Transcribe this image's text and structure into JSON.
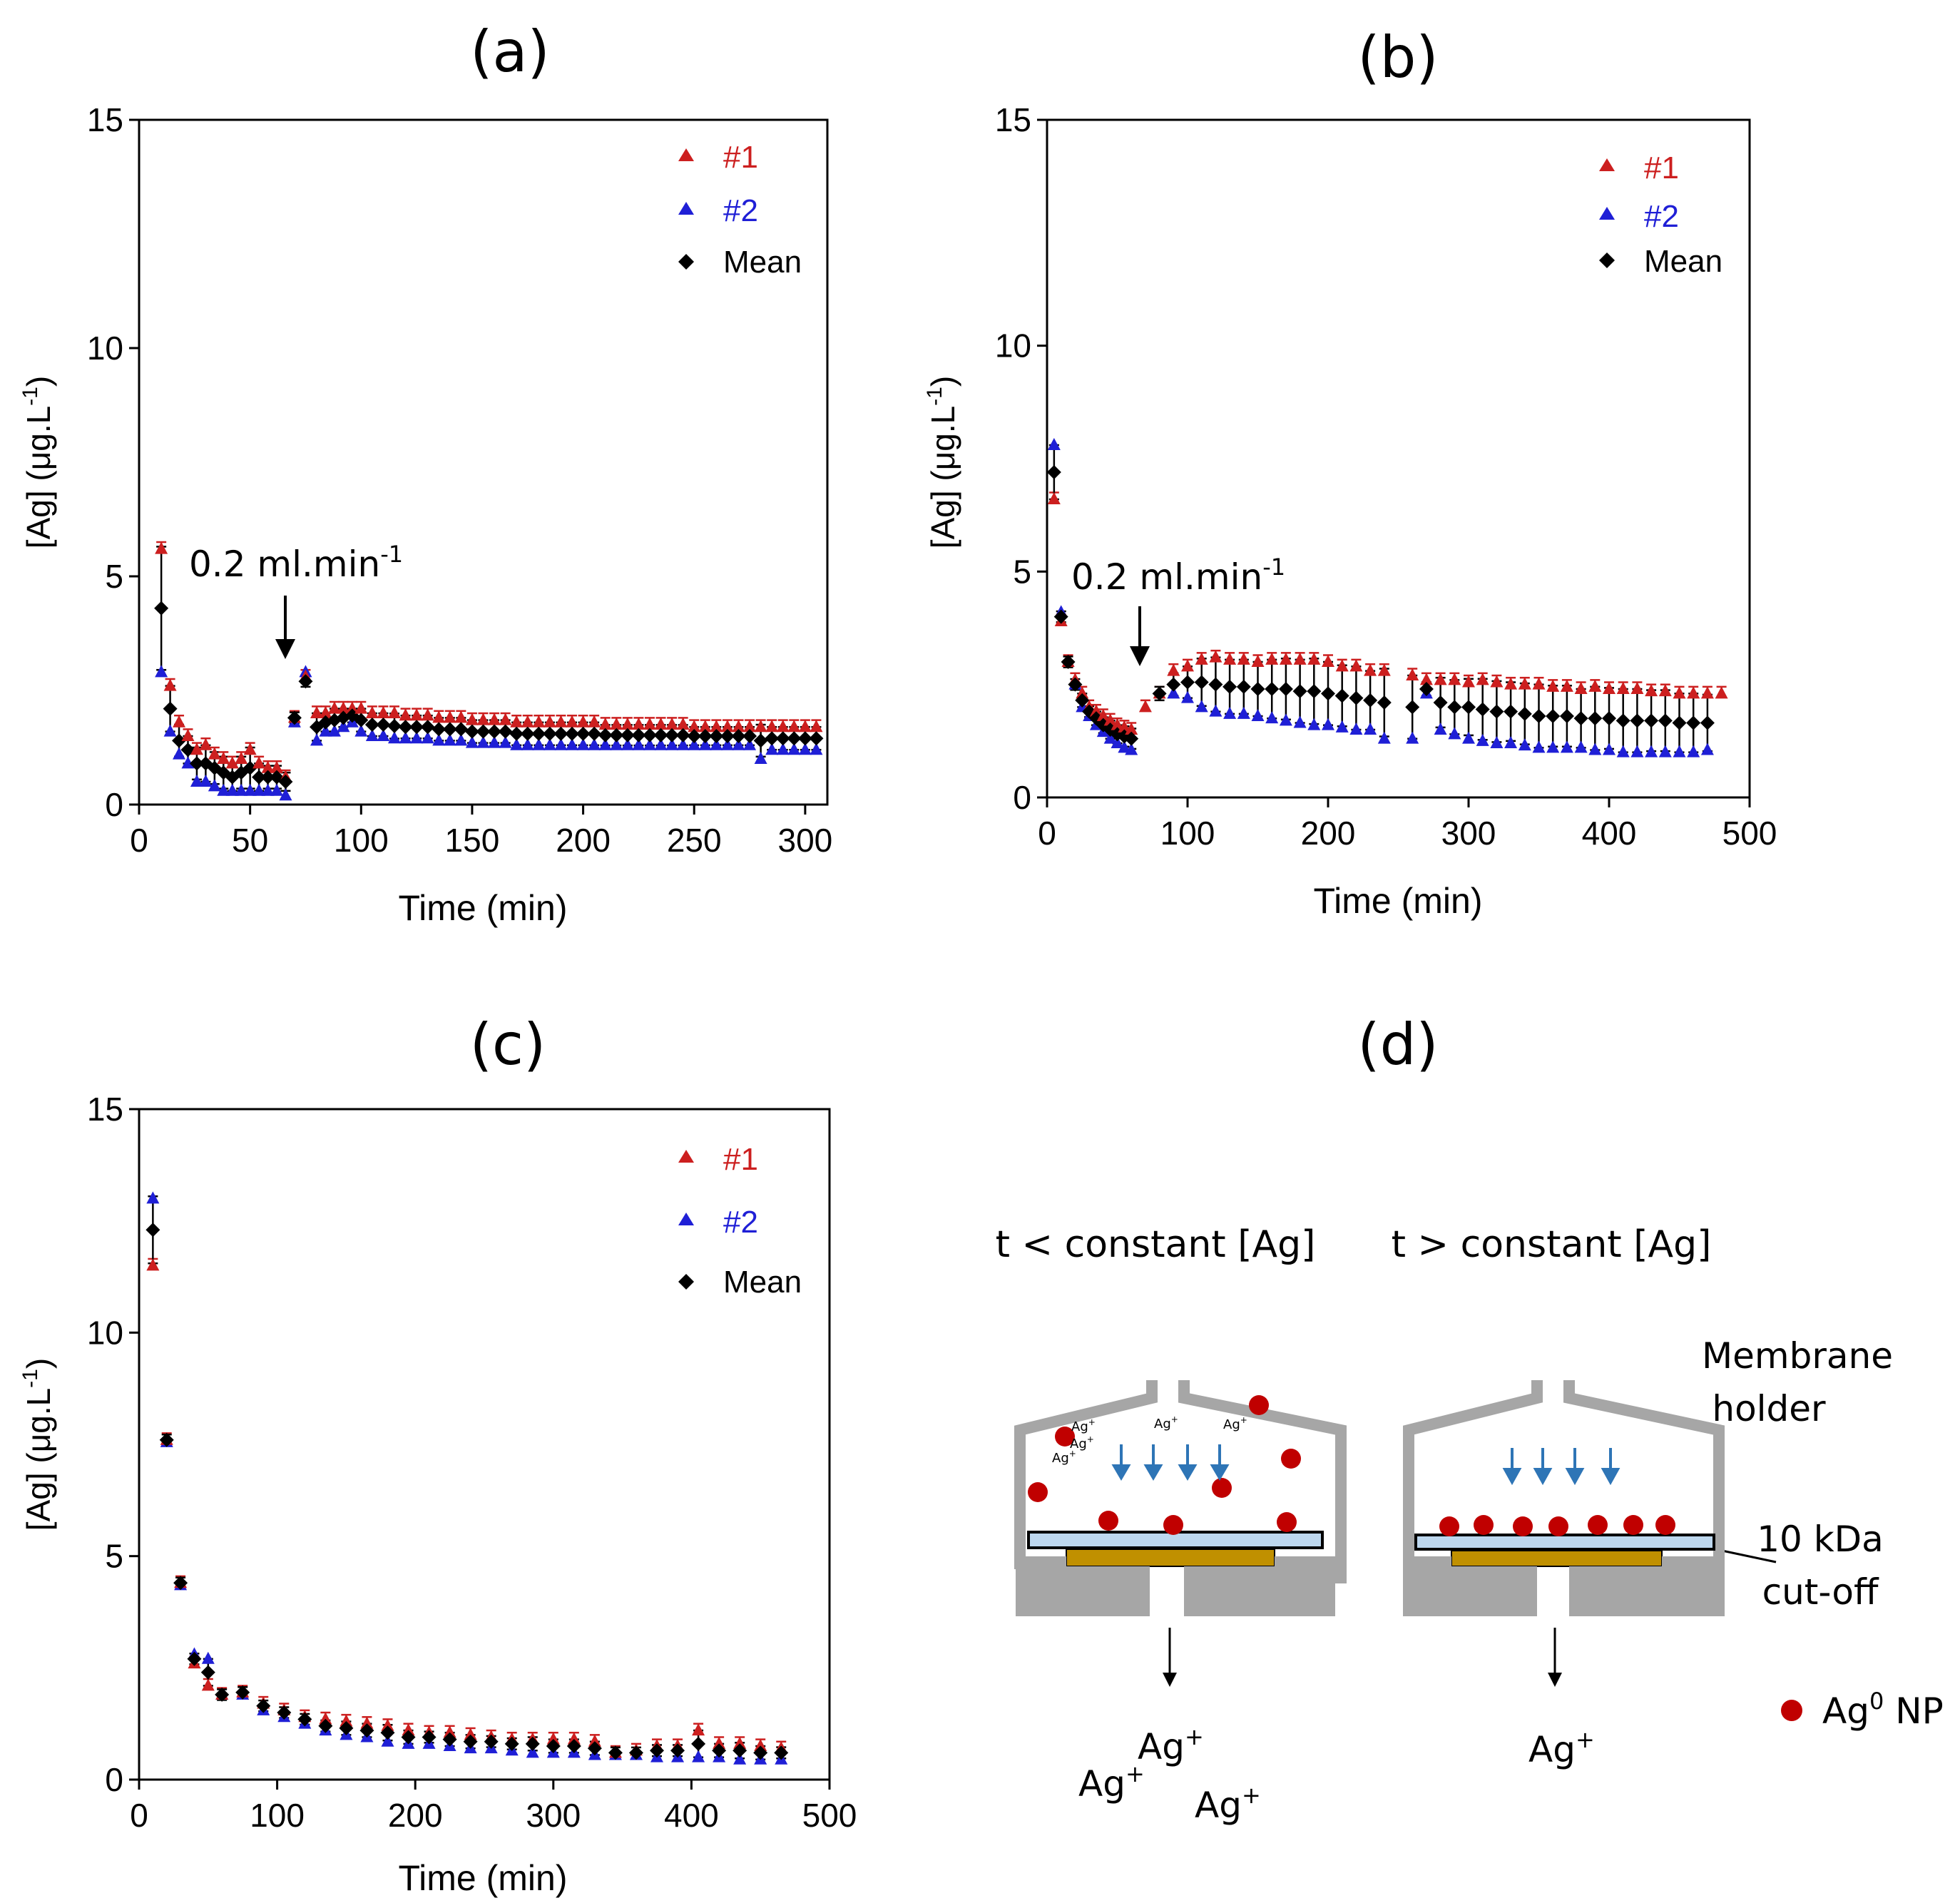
{
  "chart_data": [
    {
      "type": "scatter",
      "panel_label": "(a)",
      "xlabel": "Time (min)",
      "ylabel_main": "[Ag] (μg.L",
      "ylabel_sup": "-1",
      "ylabel_close": ")",
      "xlim": [
        0,
        310
      ],
      "ylim": [
        0,
        15
      ],
      "xticks": [
        0,
        50,
        100,
        150,
        200,
        250,
        300
      ],
      "yticks": [
        0,
        5,
        10,
        15
      ],
      "legend": [
        "#1",
        "#2",
        "Mean"
      ],
      "annotation": {
        "text": "0.2 ml.min",
        "sup": "-1",
        "x": 67,
        "y": 2.4
      },
      "x": [
        10,
        14,
        18,
        22,
        26,
        30,
        34,
        38,
        42,
        46,
        50,
        54,
        58,
        62,
        66,
        70,
        75,
        80,
        84,
        88,
        92,
        96,
        100,
        105,
        110,
        115,
        120,
        125,
        130,
        135,
        140,
        145,
        150,
        155,
        160,
        165,
        170,
        175,
        180,
        185,
        190,
        195,
        200,
        205,
        210,
        215,
        220,
        225,
        230,
        235,
        240,
        245,
        250,
        255,
        260,
        265,
        270,
        275,
        280,
        285,
        290,
        295,
        300,
        305
      ],
      "series": [
        {
          "name": "#1",
          "values": [
            5.6,
            2.6,
            1.8,
            1.5,
            1.2,
            1.3,
            1.1,
            1.0,
            0.9,
            1.0,
            1.2,
            0.9,
            0.8,
            0.8,
            0.6,
            1.9,
            2.8,
            2.0,
            2.0,
            2.1,
            2.1,
            2.1,
            2.1,
            2.0,
            2.0,
            2.0,
            1.95,
            1.95,
            1.95,
            1.9,
            1.9,
            1.9,
            1.85,
            1.85,
            1.85,
            1.85,
            1.8,
            1.8,
            1.8,
            1.8,
            1.8,
            1.8,
            1.8,
            1.8,
            1.75,
            1.75,
            1.75,
            1.75,
            1.75,
            1.75,
            1.75,
            1.75,
            1.7,
            1.7,
            1.7,
            1.7,
            1.7,
            1.7,
            1.7,
            1.7,
            1.7,
            1.7,
            1.7,
            1.7
          ]
        },
        {
          "name": "#2",
          "values": [
            2.9,
            1.6,
            1.1,
            0.9,
            0.5,
            0.5,
            0.4,
            0.3,
            0.3,
            0.3,
            0.3,
            0.3,
            0.3,
            0.3,
            0.2,
            1.8,
            2.9,
            1.4,
            1.6,
            1.6,
            1.7,
            1.8,
            1.6,
            1.5,
            1.5,
            1.45,
            1.45,
            1.45,
            1.45,
            1.4,
            1.4,
            1.4,
            1.35,
            1.35,
            1.35,
            1.35,
            1.3,
            1.3,
            1.3,
            1.3,
            1.3,
            1.3,
            1.3,
            1.3,
            1.3,
            1.3,
            1.3,
            1.3,
            1.3,
            1.3,
            1.3,
            1.3,
            1.3,
            1.3,
            1.3,
            1.3,
            1.3,
            1.3,
            1.0,
            1.2,
            1.2,
            1.2,
            1.2,
            1.2
          ]
        },
        {
          "name": "Mean",
          "values": [
            4.3,
            2.1,
            1.4,
            1.2,
            0.9,
            0.9,
            0.8,
            0.7,
            0.6,
            0.7,
            0.8,
            0.6,
            0.6,
            0.6,
            0.5,
            1.9,
            2.7,
            1.7,
            1.8,
            1.85,
            1.9,
            1.95,
            1.85,
            1.75,
            1.75,
            1.72,
            1.7,
            1.7,
            1.7,
            1.65,
            1.65,
            1.65,
            1.6,
            1.6,
            1.6,
            1.6,
            1.55,
            1.55,
            1.55,
            1.55,
            1.55,
            1.55,
            1.55,
            1.55,
            1.52,
            1.52,
            1.52,
            1.52,
            1.52,
            1.52,
            1.52,
            1.52,
            1.5,
            1.5,
            1.5,
            1.5,
            1.5,
            1.5,
            1.4,
            1.45,
            1.45,
            1.45,
            1.45,
            1.45
          ]
        }
      ]
    },
    {
      "type": "scatter",
      "panel_label": "(b)",
      "xlabel": "Time (min)",
      "ylabel_main": "[Ag] (μg.L",
      "ylabel_sup": "-1",
      "ylabel_close": ")",
      "xlim": [
        0,
        500
      ],
      "ylim": [
        0,
        15
      ],
      "xticks": [
        0,
        100,
        200,
        300,
        400,
        500
      ],
      "yticks": [
        0,
        5,
        10,
        15
      ],
      "legend": [
        "#1",
        "#2",
        "Mean"
      ],
      "annotation": {
        "text": "0.2 ml.min",
        "sup": "-1",
        "x": 67,
        "y": 2.9
      },
      "x": [
        5,
        10,
        15,
        20,
        25,
        30,
        35,
        40,
        45,
        50,
        55,
        60,
        70,
        80,
        90,
        100,
        110,
        120,
        130,
        140,
        150,
        160,
        170,
        180,
        190,
        200,
        210,
        220,
        230,
        240,
        260,
        270,
        280,
        290,
        300,
        310,
        320,
        330,
        340,
        350,
        360,
        370,
        380,
        390,
        400,
        410,
        420,
        430,
        440,
        450,
        460,
        470,
        480
      ],
      "series": [
        {
          "name": "#1",
          "values": [
            6.6,
            3.9,
            3.0,
            2.6,
            2.3,
            2.0,
            1.9,
            1.8,
            1.7,
            1.6,
            1.55,
            1.5,
            2.0,
            2.3,
            2.8,
            2.9,
            3.05,
            3.1,
            3.05,
            3.05,
            3.0,
            3.05,
            3.05,
            3.05,
            3.05,
            3.0,
            2.9,
            2.9,
            2.8,
            2.8,
            2.7,
            2.6,
            2.6,
            2.6,
            2.55,
            2.6,
            2.55,
            2.5,
            2.5,
            2.5,
            2.45,
            2.45,
            2.4,
            2.45,
            2.4,
            2.4,
            2.4,
            2.35,
            2.35,
            2.3,
            2.3,
            2.3,
            2.3
          ]
        },
        {
          "name": "#2",
          "values": [
            7.8,
            4.1,
            3.0,
            2.5,
            2.0,
            1.8,
            1.6,
            1.45,
            1.3,
            1.2,
            1.1,
            1.05,
            null,
            null,
            2.3,
            2.2,
            2.0,
            1.9,
            1.85,
            1.85,
            1.8,
            1.75,
            1.7,
            1.65,
            1.6,
            1.6,
            1.55,
            1.5,
            1.5,
            1.3,
            1.3,
            2.3,
            1.5,
            1.4,
            1.3,
            1.25,
            1.2,
            1.2,
            1.15,
            1.1,
            1.1,
            1.1,
            1.1,
            1.05,
            1.05,
            1.0,
            1.0,
            1.0,
            1.0,
            1.0,
            1.0,
            1.05,
            null
          ]
        },
        {
          "name": "Mean",
          "values": [
            7.2,
            4.0,
            3.0,
            2.5,
            2.15,
            1.9,
            1.75,
            1.6,
            1.5,
            1.4,
            1.35,
            1.3,
            null,
            2.3,
            2.5,
            2.55,
            2.55,
            2.5,
            2.45,
            2.45,
            2.4,
            2.4,
            2.4,
            2.35,
            2.35,
            2.3,
            2.25,
            2.2,
            2.15,
            2.1,
            2.0,
            2.4,
            2.1,
            2.0,
            2.0,
            1.95,
            1.9,
            1.9,
            1.85,
            1.8,
            1.8,
            1.8,
            1.75,
            1.75,
            1.75,
            1.7,
            1.7,
            1.7,
            1.7,
            1.65,
            1.65,
            1.65,
            null
          ]
        }
      ]
    },
    {
      "type": "scatter",
      "panel_label": "(c)",
      "xlabel": "Time (min)",
      "ylabel_main": "[Ag] (μg.L",
      "ylabel_sup": "-1",
      "ylabel_close": ")",
      "xlim": [
        0,
        500
      ],
      "ylim": [
        0,
        15
      ],
      "xticks": [
        0,
        100,
        200,
        300,
        400,
        500
      ],
      "yticks": [
        0,
        5,
        10,
        15
      ],
      "legend": [
        "#1",
        "#2",
        "Mean"
      ],
      "x": [
        10,
        20,
        30,
        40,
        50,
        60,
        75,
        90,
        105,
        120,
        135,
        150,
        165,
        180,
        195,
        210,
        225,
        240,
        255,
        270,
        285,
        300,
        315,
        330,
        345,
        360,
        375,
        390,
        405,
        420,
        435,
        450,
        465
      ],
      "series": [
        {
          "name": "#1",
          "values": [
            11.5,
            7.6,
            4.4,
            2.6,
            2.1,
            1.9,
            1.95,
            1.7,
            1.55,
            1.4,
            1.35,
            1.3,
            1.25,
            1.2,
            1.1,
            1.05,
            1.05,
            1.0,
            0.95,
            0.9,
            0.9,
            0.9,
            0.9,
            0.85,
            0.6,
            0.65,
            0.75,
            0.75,
            1.1,
            0.8,
            0.8,
            0.75,
            0.7
          ]
        },
        {
          "name": "#2",
          "values": [
            13.0,
            7.55,
            4.35,
            2.8,
            2.7,
            1.9,
            1.9,
            1.55,
            1.4,
            1.25,
            1.1,
            1.0,
            0.95,
            0.85,
            0.8,
            0.8,
            0.75,
            0.7,
            0.7,
            0.65,
            0.6,
            0.6,
            0.6,
            0.55,
            0.55,
            0.55,
            0.5,
            0.5,
            0.5,
            0.5,
            0.45,
            0.45,
            0.45
          ]
        },
        {
          "name": "Mean",
          "values": [
            12.3,
            7.6,
            4.4,
            2.7,
            2.4,
            1.9,
            1.95,
            1.65,
            1.5,
            1.35,
            1.2,
            1.15,
            1.1,
            1.05,
            0.95,
            0.95,
            0.9,
            0.85,
            0.85,
            0.8,
            0.8,
            0.75,
            0.75,
            0.7,
            0.6,
            0.6,
            0.65,
            0.65,
            0.8,
            0.65,
            0.65,
            0.6,
            0.6
          ]
        }
      ]
    }
  ],
  "colors": {
    "series1": "#cc1f1f",
    "series2": "#1f1fd6",
    "mean": "#000000",
    "frame": "#000000"
  },
  "panel_d": {
    "label": "(d)",
    "state_left": "t < constant [Ag]",
    "state_right": "t > constant [Ag]",
    "membrane_holder_line1": "Membrane",
    "membrane_holder_line2": "holder",
    "cutoff_line1": "10 kDa",
    "cutoff_line2": "cut-off",
    "ion": "Ag",
    "ion_sup": "+",
    "legend_np_main": "Ag",
    "legend_np_sup": "0",
    "legend_np_suffix": " NP",
    "colors": {
      "holder": "#a6a6a6",
      "np": "#c00000",
      "membrane": "#bdd7ee",
      "support": "#c09000",
      "flow": "#2e75b6"
    }
  }
}
